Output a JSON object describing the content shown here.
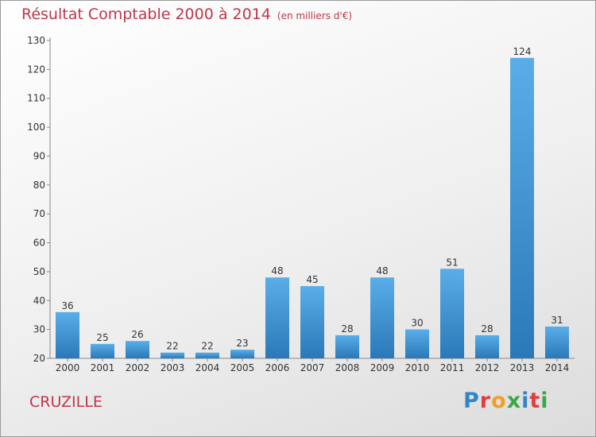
{
  "header": {
    "title": "Résultat Comptable 2000 à 2014",
    "subtitle": "(en milliers d'€)"
  },
  "footer": {
    "town": "CRUZILLE",
    "logo_text": "Proxiti",
    "logo_colors": [
      "#2e86c8",
      "#e23d3d",
      "#f0a020",
      "#3aa84a",
      "#2e86c8",
      "#e23d3d",
      "#3aa84a"
    ]
  },
  "chart_data": {
    "type": "bar",
    "title": "Résultat Comptable 2000 à 2014",
    "subtitle": "(en milliers d'€)",
    "xlabel": "",
    "ylabel": "",
    "categories": [
      "2000",
      "2001",
      "2002",
      "2003",
      "2004",
      "2005",
      "2006",
      "2007",
      "2008",
      "2009",
      "2010",
      "2011",
      "2012",
      "2013",
      "2014"
    ],
    "values": [
      36,
      25,
      26,
      22,
      22,
      23,
      48,
      45,
      28,
      48,
      30,
      51,
      28,
      124,
      31
    ],
    "ylim": [
      20,
      130
    ],
    "yticks": [
      20,
      30,
      40,
      50,
      60,
      70,
      80,
      90,
      100,
      110,
      120,
      130
    ],
    "grid": false,
    "bar_color": "#3f94d4"
  }
}
